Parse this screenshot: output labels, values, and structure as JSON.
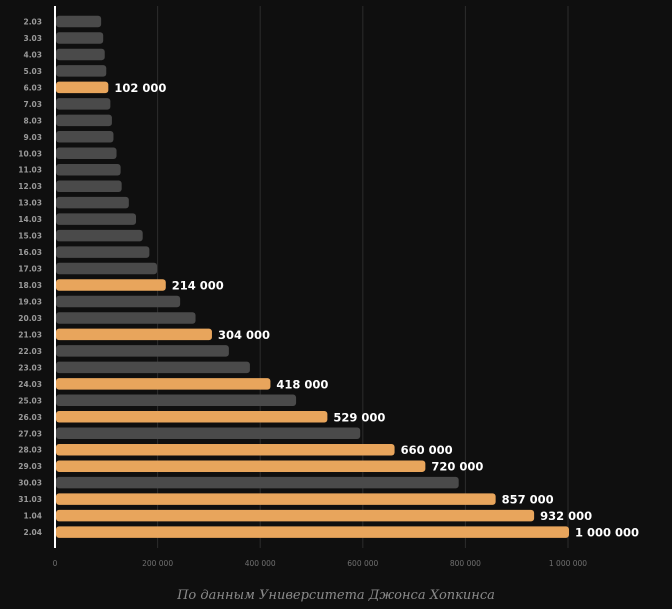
{
  "chart_data": {
    "type": "bar",
    "orientation": "horizontal",
    "categories": [
      "2.03",
      "3.03",
      "4.03",
      "5.03",
      "6.03",
      "7.03",
      "8.03",
      "9.03",
      "10.03",
      "11.03",
      "12.03",
      "13.03",
      "14.03",
      "15.03",
      "16.03",
      "17.03",
      "18.03",
      "19.03",
      "20.03",
      "21.03",
      "22.03",
      "23.03",
      "24.03",
      "25.03",
      "26.03",
      "27.03",
      "28.03",
      "29.03",
      "30.03",
      "31.03",
      "1.04",
      "2.04"
    ],
    "values": [
      88000,
      92000,
      95000,
      98000,
      102000,
      106000,
      109000,
      112000,
      118000,
      126000,
      128000,
      142000,
      156000,
      169000,
      182000,
      197000,
      214000,
      242000,
      272000,
      304000,
      337000,
      378000,
      418000,
      468000,
      529000,
      593000,
      660000,
      720000,
      785000,
      857000,
      932000,
      1000000
    ],
    "highlighted": [
      "6.03",
      "18.03",
      "21.03",
      "24.03",
      "26.03",
      "28.03",
      "29.03",
      "31.03",
      "1.04",
      "2.04"
    ],
    "value_labels": {
      "6.03": "102 000",
      "18.03": "214 000",
      "21.03": "304 000",
      "24.03": "418 000",
      "26.03": "529 000",
      "28.03": "660 000",
      "29.03": "720 000",
      "31.03": "857 000",
      "1.04": "932 000",
      "2.04": "1 000 000"
    },
    "x_ticks": [
      {
        "value": 0,
        "label": "0"
      },
      {
        "value": 200000,
        "label": "200 000"
      },
      {
        "value": 400000,
        "label": "400 000"
      },
      {
        "value": 600000,
        "label": "600 000"
      },
      {
        "value": 800000,
        "label": "800 000"
      },
      {
        "value": 1000000,
        "label": "1 000 000"
      }
    ],
    "xlim": [
      0,
      1000000
    ],
    "grid": true,
    "title": "",
    "xlabel": "",
    "ylabel": "",
    "colors": {
      "background": "#0f0f0f",
      "bar": "#4a4a4a",
      "highlight": "#e8a55c",
      "grid": "#2c2c2c",
      "axis": "#ffffff",
      "category_text": "#9a9a9a",
      "tick_text": "#6f6f6f",
      "value_text": "#ffffff"
    }
  },
  "caption": "По данным Университета Джонса Хопкинса"
}
